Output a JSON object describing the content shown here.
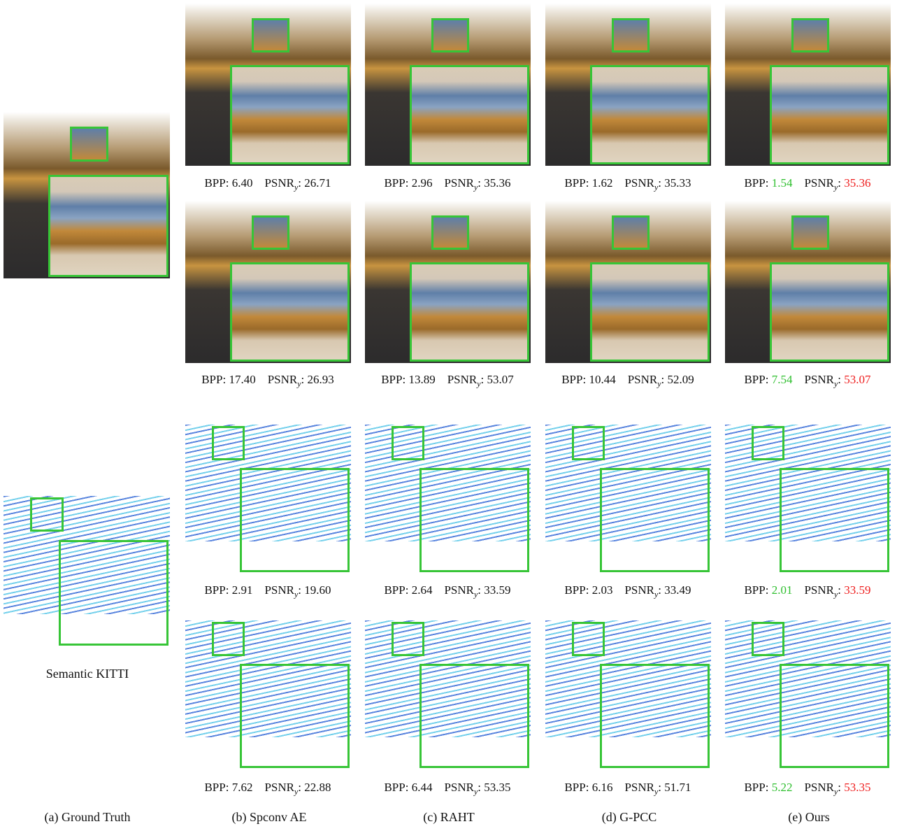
{
  "columns": [
    {
      "label": "(a) Ground Truth"
    },
    {
      "label": "(b) Spconv AE"
    },
    {
      "label": "(c) RAHT"
    },
    {
      "label": "(d) G-PCC"
    },
    {
      "label": "(e) Ours",
      "highlight": true
    }
  ],
  "caption_text": {
    "bpp": "BPP:",
    "psnr": "PSNR",
    "psnr_subscript": "y",
    "colon": ":"
  },
  "highlight_colors": {
    "bpp": "#2fbf2f",
    "psnr": "#ee1c1c"
  },
  "datasets": [
    {
      "rows": [
        [
          {
            "bpp": "6.40",
            "psnr": "26.71"
          },
          {
            "bpp": "2.96",
            "psnr": "35.36"
          },
          {
            "bpp": "1.62",
            "psnr": "35.33"
          },
          {
            "bpp": "1.54",
            "psnr": "35.36"
          }
        ],
        [
          {
            "bpp": "17.40",
            "psnr": "26.93"
          },
          {
            "bpp": "13.89",
            "psnr": "53.07"
          },
          {
            "bpp": "10.44",
            "psnr": "52.09"
          },
          {
            "bpp": "7.54",
            "psnr": "53.07"
          }
        ]
      ]
    },
    {
      "name": "Semantic KITTI",
      "rows": [
        [
          {
            "bpp": "2.91",
            "psnr": "19.60"
          },
          {
            "bpp": "2.64",
            "psnr": "33.59"
          },
          {
            "bpp": "2.03",
            "psnr": "33.49"
          },
          {
            "bpp": "2.01",
            "psnr": "33.59"
          }
        ],
        [
          {
            "bpp": "7.62",
            "psnr": "22.88"
          },
          {
            "bpp": "6.44",
            "psnr": "53.35"
          },
          {
            "bpp": "6.16",
            "psnr": "51.71"
          },
          {
            "bpp": "5.22",
            "psnr": "53.35"
          }
        ]
      ]
    }
  ]
}
